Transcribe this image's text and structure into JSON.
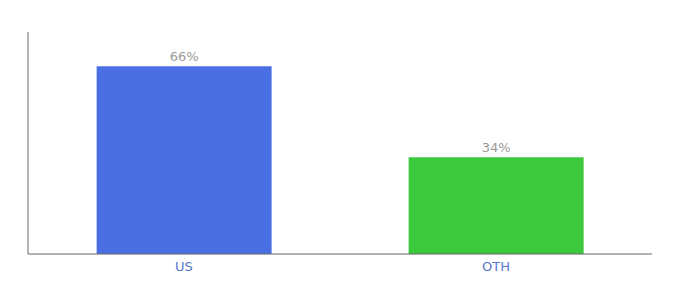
{
  "chart_data": {
    "type": "bar",
    "categories": [
      "US",
      "OTH"
    ],
    "values": [
      66,
      34
    ],
    "value_labels": [
      "66%",
      "34%"
    ],
    "colors": [
      "#4A6FE3",
      "#3DC93D"
    ],
    "ylim": [
      0,
      78
    ],
    "data_labels": true,
    "tick_labels": "x",
    "grid": false
  }
}
